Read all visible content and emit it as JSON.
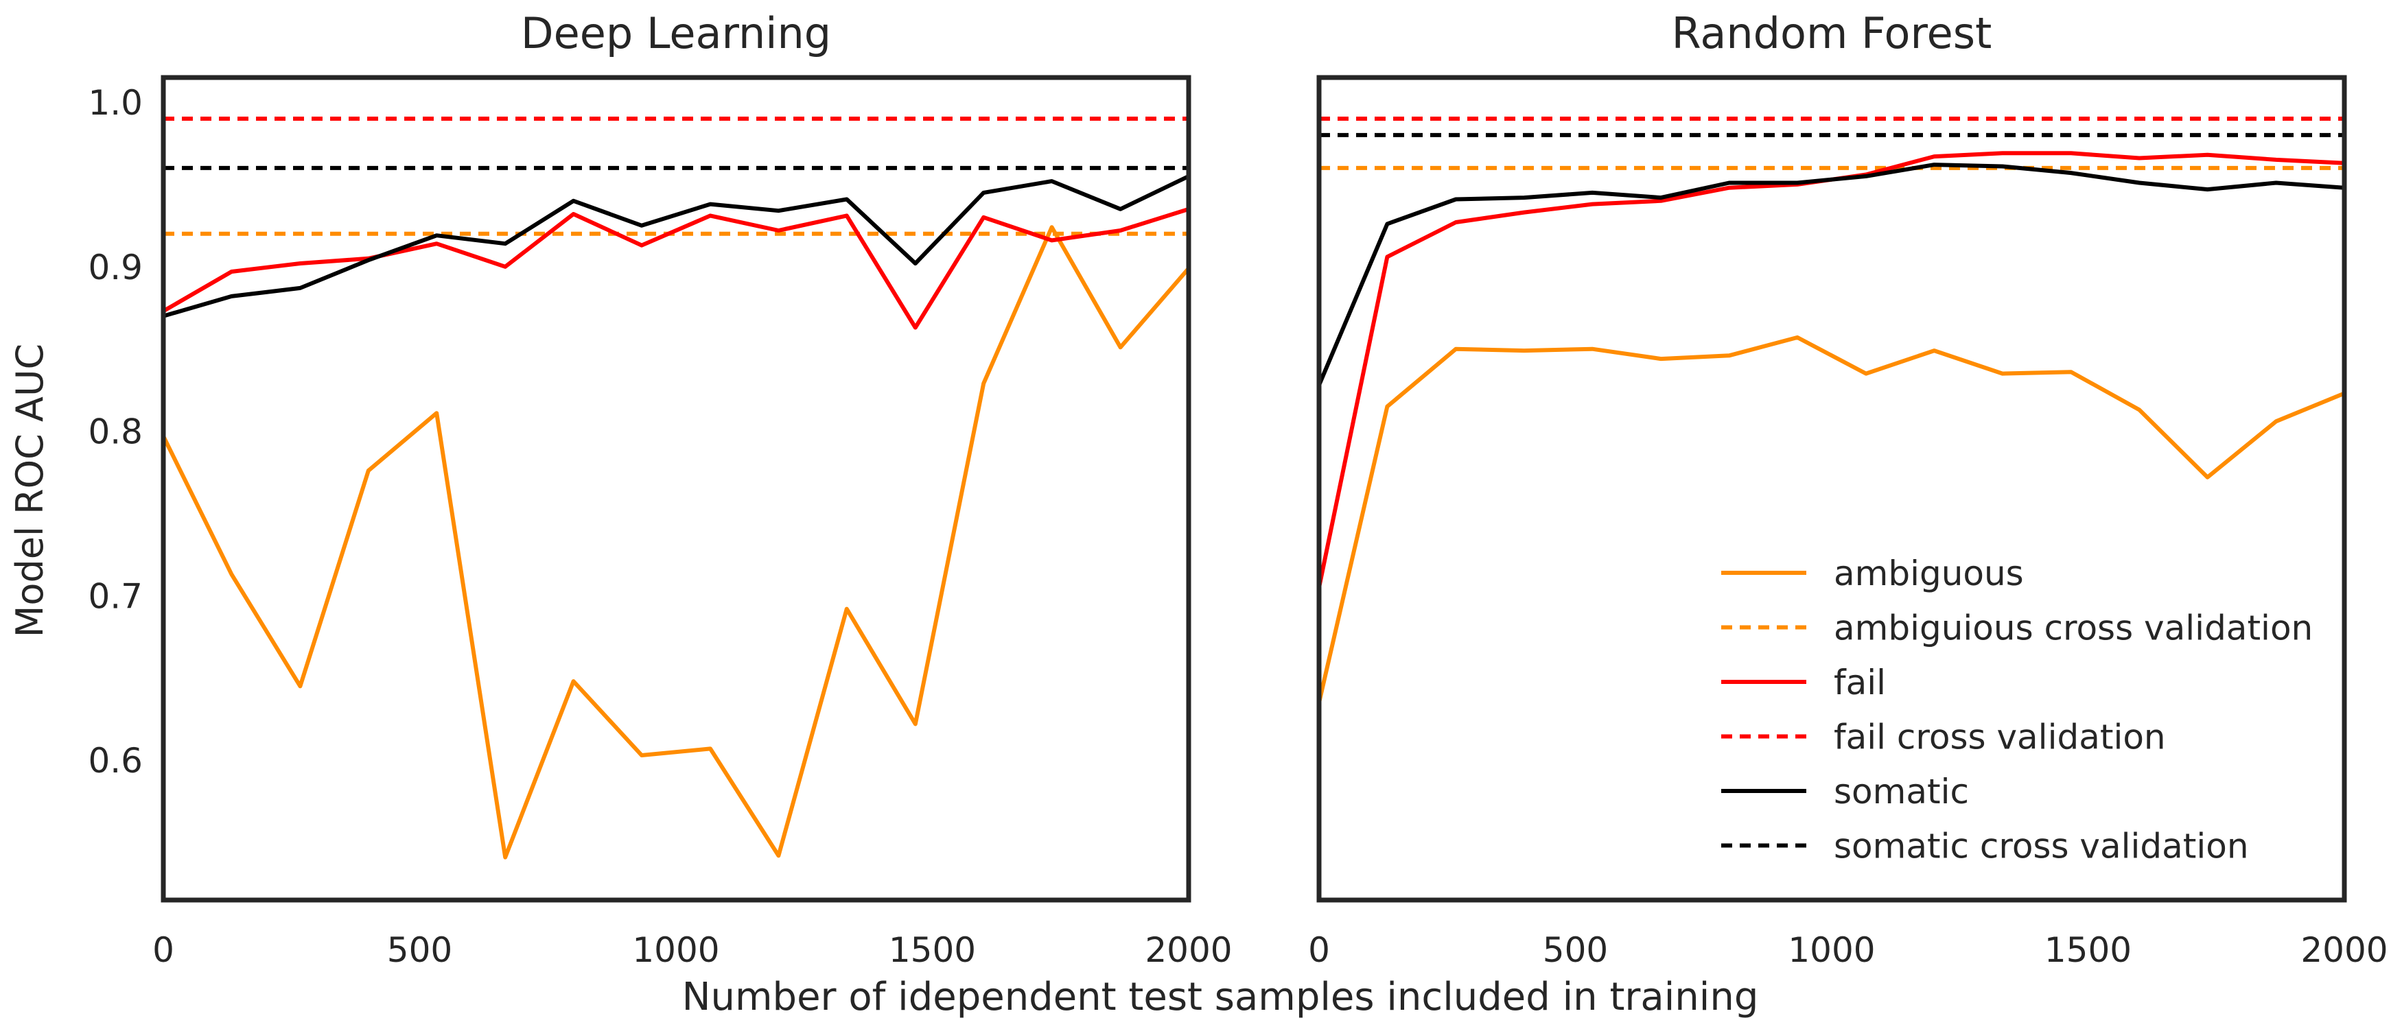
{
  "figure": {
    "shared_ylabel": "Model ROC AUC",
    "shared_xlabel": "Number of idependent test samples included in training"
  },
  "chart_data": [
    {
      "type": "line",
      "title": "Deep Learning",
      "xlim": [
        0,
        2000
      ],
      "ylim": [
        0.515,
        1.015
      ],
      "xticks": [
        0,
        500,
        1000,
        1500,
        2000
      ],
      "yticks": [
        0.6,
        0.7,
        0.8,
        0.9,
        1.0
      ],
      "ytick_labels": [
        "0.6",
        "0.7",
        "0.8",
        "0.9",
        "1.0"
      ],
      "grid": false,
      "x": [
        0,
        133,
        267,
        400,
        533,
        667,
        800,
        933,
        1067,
        1200,
        1333,
        1467,
        1600,
        1733,
        1867,
        2000
      ],
      "series": [
        {
          "name": "ambiguous",
          "color": "#ff8c00",
          "style": "solid",
          "values": [
            0.797,
            0.713,
            0.645,
            0.776,
            0.811,
            0.541,
            0.648,
            0.603,
            0.607,
            0.542,
            0.692,
            0.622,
            0.829,
            0.924,
            0.851,
            0.899
          ]
        },
        {
          "name": "fail",
          "color": "#ff0000",
          "style": "solid",
          "values": [
            0.873,
            0.897,
            0.902,
            0.905,
            0.914,
            0.9,
            0.932,
            0.913,
            0.931,
            0.922,
            0.931,
            0.863,
            0.93,
            0.916,
            0.922,
            0.935
          ]
        },
        {
          "name": "somatic",
          "color": "#000000",
          "style": "solid",
          "values": [
            0.87,
            0.882,
            0.887,
            0.904,
            0.919,
            0.914,
            0.94,
            0.925,
            0.938,
            0.934,
            0.941,
            0.902,
            0.945,
            0.952,
            0.935,
            0.955
          ]
        },
        {
          "name": "ambiguious cross validation",
          "color": "#ff8c00",
          "style": "dashed",
          "constant": 0.92
        },
        {
          "name": "fail cross validation",
          "color": "#ff0000",
          "style": "dashed",
          "constant": 0.99
        },
        {
          "name": "somatic cross validation",
          "color": "#000000",
          "style": "dashed",
          "constant": 0.96
        }
      ]
    },
    {
      "type": "line",
      "title": "Random Forest",
      "xlim": [
        0,
        2000
      ],
      "ylim": [
        0.515,
        1.015
      ],
      "xticks": [
        0,
        500,
        1000,
        1500,
        2000
      ],
      "yticks": [],
      "grid": false,
      "legend": "lower-right",
      "x": [
        0,
        133,
        267,
        400,
        533,
        667,
        800,
        933,
        1067,
        1200,
        1333,
        1467,
        1600,
        1733,
        1867,
        2000
      ],
      "series": [
        {
          "name": "ambiguous",
          "color": "#ff8c00",
          "style": "solid",
          "values": [
            0.635,
            0.815,
            0.85,
            0.849,
            0.85,
            0.844,
            0.846,
            0.857,
            0.835,
            0.849,
            0.835,
            0.836,
            0.813,
            0.772,
            0.806,
            0.823
          ]
        },
        {
          "name": "ambiguious cross validation",
          "color": "#ff8c00",
          "style": "dashed",
          "constant": 0.96
        },
        {
          "name": "fail",
          "color": "#ff0000",
          "style": "solid",
          "values": [
            0.705,
            0.906,
            0.927,
            0.933,
            0.938,
            0.94,
            0.948,
            0.95,
            0.956,
            0.967,
            0.969,
            0.969,
            0.966,
            0.968,
            0.965,
            0.963
          ]
        },
        {
          "name": "fail cross validation",
          "color": "#ff0000",
          "style": "dashed",
          "constant": 0.99
        },
        {
          "name": "somatic",
          "color": "#000000",
          "style": "solid",
          "values": [
            0.828,
            0.926,
            0.941,
            0.942,
            0.945,
            0.942,
            0.951,
            0.951,
            0.955,
            0.962,
            0.961,
            0.957,
            0.951,
            0.947,
            0.951,
            0.948
          ]
        },
        {
          "name": "somatic cross validation",
          "color": "#000000",
          "style": "dashed",
          "constant": 0.98
        }
      ]
    }
  ]
}
